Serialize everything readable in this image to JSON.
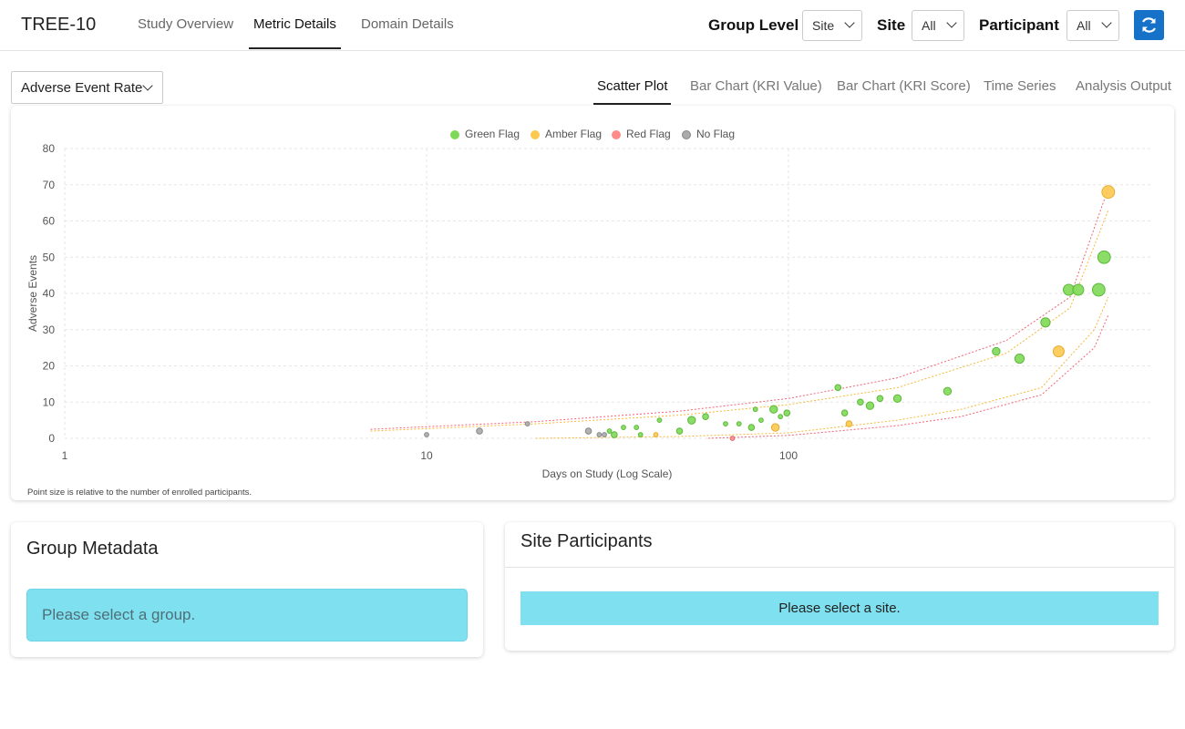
{
  "app": {
    "title": "TREE-10"
  },
  "nav": {
    "tabs": [
      "Study Overview",
      "Metric Details",
      "Domain Details"
    ],
    "active": 1
  },
  "filters": {
    "group_level": {
      "label": "Group Level",
      "value": "Site"
    },
    "site": {
      "label": "Site",
      "value": "All"
    },
    "participant": {
      "label": "Participant",
      "value": "All"
    },
    "refresh_icon": "refresh-icon"
  },
  "metric": {
    "selected": "Adverse Event Rate"
  },
  "chart_tabs": [
    "Scatter Plot",
    "Bar Chart (KRI Value)",
    "Bar Chart (KRI Score)",
    "Time Series",
    "Analysis Output"
  ],
  "chart_note": "Point size is relative to the number of enrolled participants.",
  "chart_data": {
    "type": "scatter",
    "xlabel": "Days on Study (Log Scale)",
    "ylabel": "Adverse Events",
    "x_scale": "log",
    "xlim": [
      1,
      1000
    ],
    "ylim": [
      0,
      80
    ],
    "x_ticks": [
      "1",
      "10",
      "100"
    ],
    "y_ticks": [
      "0",
      "10",
      "20",
      "30",
      "40",
      "50",
      "60",
      "70",
      "80"
    ],
    "grid": true,
    "legend_position": "top-center",
    "legend": [
      {
        "name": "Green Flag",
        "color": "#7ed957"
      },
      {
        "name": "Amber Flag",
        "color": "#fcc850"
      },
      {
        "name": "Red Flag",
        "color": "#ff8a8a"
      },
      {
        "name": "No Flag",
        "color": "#aaaaaa"
      }
    ],
    "points": [
      {
        "x": 10,
        "y": 1,
        "flag": "none",
        "size": 1
      },
      {
        "x": 14,
        "y": 2,
        "flag": "none",
        "size": 2
      },
      {
        "x": 19,
        "y": 4,
        "flag": "none",
        "size": 1
      },
      {
        "x": 28,
        "y": 2,
        "flag": "none",
        "size": 2
      },
      {
        "x": 30,
        "y": 1,
        "flag": "none",
        "size": 1
      },
      {
        "x": 31,
        "y": 1,
        "flag": "none",
        "size": 1
      },
      {
        "x": 32,
        "y": 2,
        "flag": "green",
        "size": 1
      },
      {
        "x": 33,
        "y": 1,
        "flag": "green",
        "size": 2
      },
      {
        "x": 35,
        "y": 3,
        "flag": "green",
        "size": 1
      },
      {
        "x": 38,
        "y": 3,
        "flag": "green",
        "size": 1
      },
      {
        "x": 39,
        "y": 1,
        "flag": "green",
        "size": 1
      },
      {
        "x": 43,
        "y": 1,
        "flag": "amber",
        "size": 1
      },
      {
        "x": 44,
        "y": 5,
        "flag": "green",
        "size": 1
      },
      {
        "x": 50,
        "y": 2,
        "flag": "green",
        "size": 2
      },
      {
        "x": 54,
        "y": 5,
        "flag": "green",
        "size": 3
      },
      {
        "x": 59,
        "y": 6,
        "flag": "green",
        "size": 2
      },
      {
        "x": 67,
        "y": 4,
        "flag": "green",
        "size": 1
      },
      {
        "x": 70,
        "y": 0,
        "flag": "red",
        "size": 1
      },
      {
        "x": 73,
        "y": 4,
        "flag": "green",
        "size": 1
      },
      {
        "x": 79,
        "y": 3,
        "flag": "green",
        "size": 2
      },
      {
        "x": 81,
        "y": 8,
        "flag": "green",
        "size": 1
      },
      {
        "x": 84,
        "y": 5,
        "flag": "green",
        "size": 1
      },
      {
        "x": 91,
        "y": 8,
        "flag": "green",
        "size": 3
      },
      {
        "x": 92,
        "y": 3,
        "flag": "amber",
        "size": 3
      },
      {
        "x": 95,
        "y": 6,
        "flag": "green",
        "size": 1
      },
      {
        "x": 99,
        "y": 7,
        "flag": "green",
        "size": 2
      },
      {
        "x": 137,
        "y": 14,
        "flag": "green",
        "size": 2
      },
      {
        "x": 143,
        "y": 7,
        "flag": "green",
        "size": 2
      },
      {
        "x": 147,
        "y": 4,
        "flag": "amber",
        "size": 2
      },
      {
        "x": 158,
        "y": 10,
        "flag": "green",
        "size": 2
      },
      {
        "x": 168,
        "y": 9,
        "flag": "green",
        "size": 3
      },
      {
        "x": 179,
        "y": 11,
        "flag": "green",
        "size": 2
      },
      {
        "x": 200,
        "y": 11,
        "flag": "green",
        "size": 3
      },
      {
        "x": 275,
        "y": 13,
        "flag": "green",
        "size": 3
      },
      {
        "x": 375,
        "y": 24,
        "flag": "green",
        "size": 3
      },
      {
        "x": 435,
        "y": 22,
        "flag": "green",
        "size": 4
      },
      {
        "x": 513,
        "y": 32,
        "flag": "green",
        "size": 4
      },
      {
        "x": 558,
        "y": 24,
        "flag": "amber",
        "size": 5
      },
      {
        "x": 595,
        "y": 41,
        "flag": "green",
        "size": 5
      },
      {
        "x": 632,
        "y": 41,
        "flag": "green",
        "size": 5
      },
      {
        "x": 720,
        "y": 41,
        "flag": "green",
        "size": 6
      },
      {
        "x": 745,
        "y": 50,
        "flag": "green",
        "size": 6
      },
      {
        "x": 765,
        "y": 68,
        "flag": "amber",
        "size": 6
      }
    ],
    "threshold_lines": [
      {
        "flag": "red",
        "points": [
          [
            7,
            2.5
          ],
          [
            20,
            4.6
          ],
          [
            50,
            7.5
          ],
          [
            100,
            11.0
          ],
          [
            200,
            16.7
          ],
          [
            400,
            27.0
          ],
          [
            600,
            39.0
          ],
          [
            765,
            69.0
          ]
        ]
      },
      {
        "flag": "amber",
        "points": [
          [
            7,
            2.0
          ],
          [
            20,
            4.0
          ],
          [
            50,
            6.4
          ],
          [
            100,
            9.3
          ],
          [
            200,
            14.0
          ],
          [
            400,
            23.5
          ],
          [
            600,
            36.0
          ],
          [
            765,
            63.0
          ]
        ]
      },
      {
        "flag": "amber",
        "points": [
          [
            20,
            0.0
          ],
          [
            50,
            0.5
          ],
          [
            100,
            1.5
          ],
          [
            200,
            5.0
          ],
          [
            300,
            8.0
          ],
          [
            500,
            14.0
          ],
          [
            700,
            30.0
          ],
          [
            765,
            39.0
          ]
        ]
      },
      {
        "flag": "red",
        "points": [
          [
            60,
            0.0
          ],
          [
            100,
            0.8
          ],
          [
            200,
            3.5
          ],
          [
            300,
            6.0
          ],
          [
            500,
            12.0
          ],
          [
            700,
            25.0
          ],
          [
            765,
            34.0
          ]
        ]
      }
    ]
  },
  "group_metadata": {
    "title": "Group Metadata",
    "message": "Please select a group."
  },
  "site_participants": {
    "title": "Site Participants",
    "message": "Please select a site."
  }
}
